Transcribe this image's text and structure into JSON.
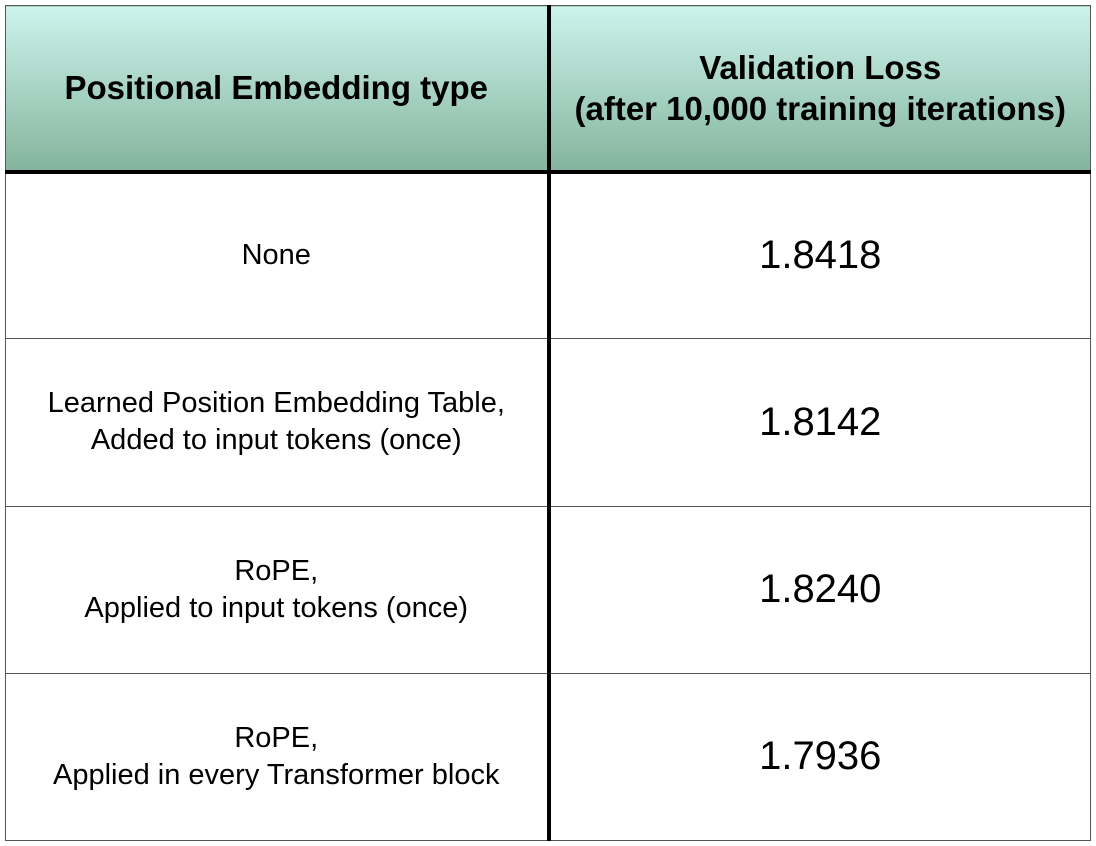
{
  "chart_data": {
    "type": "table",
    "columns": [
      [
        "Positional Embedding type"
      ],
      [
        "Validation Loss",
        "(after 10,000 training iterations)"
      ]
    ],
    "rows": [
      {
        "label": [
          "None"
        ],
        "value": "1.8418"
      },
      {
        "label": [
          "Learned Position Embedding Table,",
          "Added to input tokens (once)"
        ],
        "value": "1.8142"
      },
      {
        "label": [
          "RoPE,",
          "Applied to input tokens (once)"
        ],
        "value": "1.8240"
      },
      {
        "label": [
          "RoPE,",
          "Applied in every Transformer block"
        ],
        "value": "1.7936"
      }
    ],
    "header_colors": [
      "#ccf3ec",
      "#84b49d"
    ]
  }
}
